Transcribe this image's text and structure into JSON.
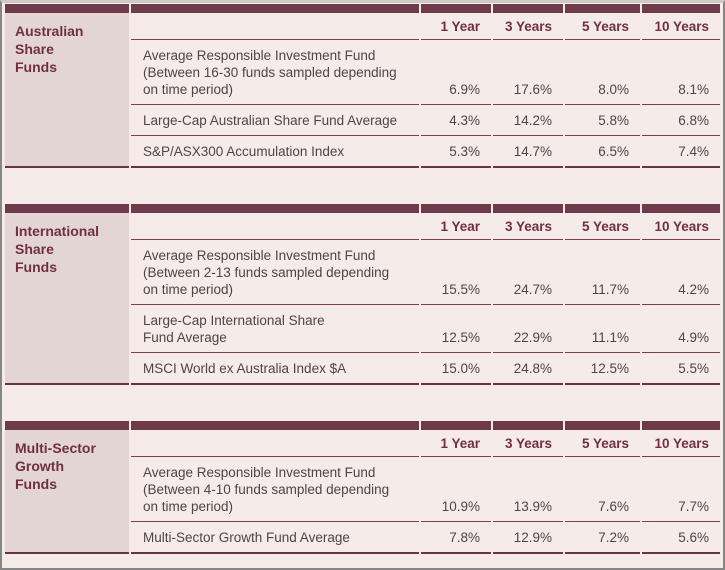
{
  "colors": {
    "page_bg": "#f5ebe9",
    "panel_label_bg": "#e3d5d3",
    "bar": "#6e3b4c",
    "accent_text": "#712f44",
    "row_line": "#7d3a51",
    "table_border": "#6a3345",
    "body_text": "#4d4547",
    "frame_border": "#868686",
    "frame_top": "#cdcac4"
  },
  "columns": [
    "1 Year",
    "3 Years",
    "5 Years",
    "10 Years"
  ],
  "tables": [
    {
      "label": "Australian\nShare\nFunds",
      "rows": [
        {
          "name": "Average Responsible Investment Fund\n(Between 16-30 funds sampled depending\non time period)",
          "values": [
            "6.9%",
            "17.6%",
            "8.0%",
            "8.1%"
          ]
        },
        {
          "name": "Large-Cap Australian Share Fund Average",
          "values": [
            "4.3%",
            "14.2%",
            "5.8%",
            "6.8%"
          ]
        },
        {
          "name": "S&P/ASX300 Accumulation Index",
          "values": [
            "5.3%",
            "14.7%",
            "6.5%",
            "7.4%"
          ]
        }
      ]
    },
    {
      "label": "International\nShare\nFunds",
      "rows": [
        {
          "name": "Average Responsible Investment Fund\n(Between 2-13 funds sampled depending\non time period)",
          "values": [
            "15.5%",
            "24.7%",
            "11.7%",
            "4.2%"
          ]
        },
        {
          "name": "Large-Cap International Share\nFund Average",
          "values": [
            "12.5%",
            "22.9%",
            "11.1%",
            "4.9%"
          ]
        },
        {
          "name": "MSCI World ex Australia Index $A",
          "values": [
            "15.0%",
            "24.8%",
            "12.5%",
            "5.5%"
          ]
        }
      ]
    },
    {
      "label": "Multi-Sector\nGrowth\nFunds",
      "rows": [
        {
          "name": "Average Responsible Investment Fund\n(Between 4-10 funds sampled depending\non time period)",
          "values": [
            "10.9%",
            "13.9%",
            "7.6%",
            "7.7%"
          ]
        },
        {
          "name": "Multi-Sector Growth Fund Average",
          "values": [
            "7.8%",
            "12.9%",
            "7.2%",
            "5.6%"
          ]
        }
      ]
    }
  ]
}
